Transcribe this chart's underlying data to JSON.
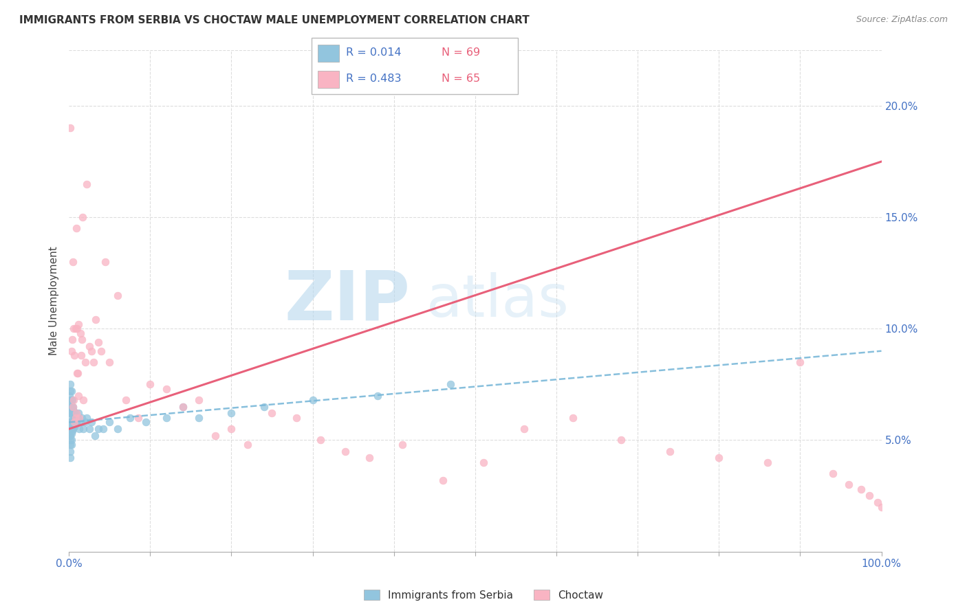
{
  "title": "IMMIGRANTS FROM SERBIA VS CHOCTAW MALE UNEMPLOYMENT CORRELATION CHART",
  "source": "Source: ZipAtlas.com",
  "ylabel": "Male Unemployment",
  "xlim": [
    0.0,
    1.0
  ],
  "ylim": [
    0.0,
    0.225
  ],
  "yticks_right": [
    0.05,
    0.1,
    0.15,
    0.2
  ],
  "ytick_labels_right": [
    "5.0%",
    "10.0%",
    "15.0%",
    "20.0%"
  ],
  "legend_label1": "Immigrants from Serbia",
  "legend_label2": "Choctaw",
  "legend_r1": "R = 0.014",
  "legend_n1": "N = 69",
  "legend_r2": "R = 0.483",
  "legend_n2": "N = 65",
  "color_serbia": "#92c5de",
  "color_choctaw": "#f9b4c3",
  "color_serbia_line": "#7ab8d9",
  "color_choctaw_line": "#e8607a",
  "serbia_x": [
    0.001,
    0.001,
    0.001,
    0.001,
    0.002,
    0.002,
    0.002,
    0.002,
    0.002,
    0.002,
    0.002,
    0.002,
    0.002,
    0.002,
    0.002,
    0.002,
    0.002,
    0.003,
    0.003,
    0.003,
    0.003,
    0.003,
    0.003,
    0.003,
    0.003,
    0.003,
    0.004,
    0.004,
    0.004,
    0.004,
    0.004,
    0.005,
    0.005,
    0.005,
    0.005,
    0.006,
    0.006,
    0.006,
    0.007,
    0.007,
    0.008,
    0.008,
    0.009,
    0.01,
    0.011,
    0.012,
    0.013,
    0.015,
    0.016,
    0.018,
    0.02,
    0.022,
    0.025,
    0.028,
    0.032,
    0.036,
    0.042,
    0.05,
    0.06,
    0.075,
    0.095,
    0.12,
    0.14,
    0.16,
    0.2,
    0.24,
    0.3,
    0.38,
    0.47
  ],
  "serbia_y": [
    0.065,
    0.07,
    0.055,
    0.052,
    0.075,
    0.072,
    0.068,
    0.065,
    0.062,
    0.06,
    0.058,
    0.055,
    0.052,
    0.05,
    0.048,
    0.045,
    0.042,
    0.072,
    0.068,
    0.065,
    0.062,
    0.058,
    0.056,
    0.053,
    0.05,
    0.048,
    0.068,
    0.065,
    0.062,
    0.058,
    0.054,
    0.065,
    0.062,
    0.058,
    0.055,
    0.063,
    0.06,
    0.057,
    0.06,
    0.056,
    0.062,
    0.058,
    0.06,
    0.058,
    0.06,
    0.062,
    0.055,
    0.058,
    0.06,
    0.055,
    0.058,
    0.06,
    0.055,
    0.058,
    0.052,
    0.055,
    0.055,
    0.058,
    0.055,
    0.06,
    0.058,
    0.06,
    0.065,
    0.06,
    0.062,
    0.065,
    0.068,
    0.07,
    0.075
  ],
  "choctaw_x": [
    0.002,
    0.003,
    0.004,
    0.005,
    0.005,
    0.006,
    0.006,
    0.007,
    0.007,
    0.008,
    0.008,
    0.009,
    0.009,
    0.01,
    0.01,
    0.011,
    0.012,
    0.012,
    0.013,
    0.014,
    0.015,
    0.016,
    0.017,
    0.018,
    0.02,
    0.022,
    0.025,
    0.028,
    0.03,
    0.033,
    0.036,
    0.04,
    0.045,
    0.05,
    0.06,
    0.07,
    0.085,
    0.1,
    0.12,
    0.14,
    0.16,
    0.18,
    0.2,
    0.22,
    0.25,
    0.28,
    0.31,
    0.34,
    0.37,
    0.41,
    0.46,
    0.51,
    0.56,
    0.62,
    0.68,
    0.74,
    0.8,
    0.86,
    0.9,
    0.94,
    0.96,
    0.975,
    0.985,
    0.995,
    1.0
  ],
  "choctaw_y": [
    0.19,
    0.09,
    0.095,
    0.065,
    0.13,
    0.068,
    0.1,
    0.058,
    0.088,
    0.06,
    0.1,
    0.062,
    0.145,
    0.08,
    0.1,
    0.08,
    0.102,
    0.07,
    0.06,
    0.098,
    0.088,
    0.095,
    0.15,
    0.068,
    0.085,
    0.165,
    0.092,
    0.09,
    0.085,
    0.104,
    0.094,
    0.09,
    0.13,
    0.085,
    0.115,
    0.068,
    0.06,
    0.075,
    0.073,
    0.065,
    0.068,
    0.052,
    0.055,
    0.048,
    0.062,
    0.06,
    0.05,
    0.045,
    0.042,
    0.048,
    0.032,
    0.04,
    0.055,
    0.06,
    0.05,
    0.045,
    0.042,
    0.04,
    0.085,
    0.035,
    0.03,
    0.028,
    0.025,
    0.022,
    0.02
  ],
  "serbia_trend_x": [
    0.0,
    1.0
  ],
  "serbia_trend_y": [
    0.058,
    0.09
  ],
  "choctaw_trend_x": [
    0.0,
    1.0
  ],
  "choctaw_trend_y": [
    0.055,
    0.175
  ]
}
